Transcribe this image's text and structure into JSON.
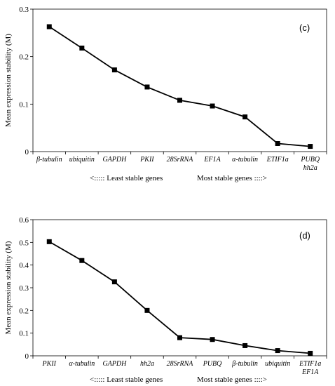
{
  "chart_data": [
    {
      "type": "line",
      "panel_label": "(c)",
      "ylabel": "Mean expression stability (M)",
      "ylim": [
        0,
        0.3
      ],
      "yticks": [
        "0",
        "0.1",
        "0.2",
        "0.3"
      ],
      "categories": [
        "β-tubulin",
        "ubiquitin",
        "GAPDH",
        "PKII",
        "28SrRNA",
        "EF1A",
        "α-tubulin",
        "ETIF1a",
        [
          "PUBQ",
          "hh2a"
        ]
      ],
      "values": [
        0.263,
        0.218,
        0.172,
        0.136,
        0.108,
        0.096,
        0.073,
        0.017,
        0.011
      ],
      "footer_left": "<::::: Least stable genes",
      "footer_right": "Most stable genes ::::>"
    },
    {
      "type": "line",
      "panel_label": "(d)",
      "ylabel": "Mean expression stability (M)",
      "ylim": [
        0,
        0.6
      ],
      "yticks": [
        "0",
        "0.1",
        "0.2",
        "0.3",
        "0.4",
        "0.5",
        "0.6"
      ],
      "categories": [
        "PKII",
        "α-tubulin",
        "GAPDH",
        "hh2a",
        "28SrRNA",
        "PUBQ",
        "β-tubulin",
        "ubiquitin",
        [
          "ETIF1a",
          "EF1A"
        ]
      ],
      "values": [
        0.503,
        0.42,
        0.326,
        0.2,
        0.08,
        0.072,
        0.045,
        0.023,
        0.011
      ],
      "footer_left": "<::::: Least stable genes",
      "footer_right": "Most stable genes ::::>"
    }
  ]
}
